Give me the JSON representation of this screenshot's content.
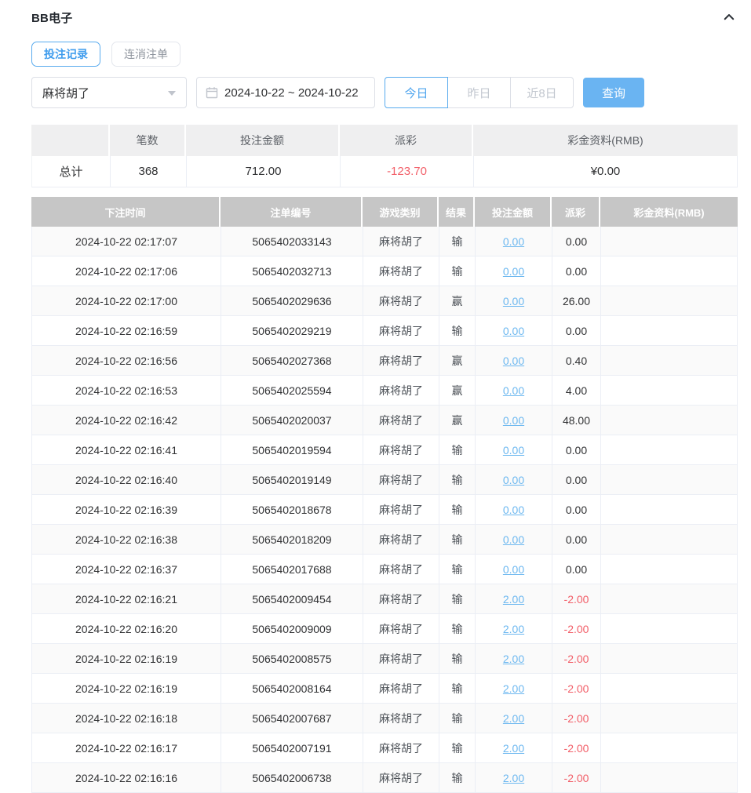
{
  "page": {
    "title": "BB电子"
  },
  "colors": {
    "accent_blue": "#4da4ee",
    "button_blue": "#6ab4f2",
    "link_blue": "#6db8f0",
    "negative_red": "#f2606a",
    "table_header_gray": "#c6c6c6",
    "summary_header_gray": "#efeff0"
  },
  "tabs": [
    {
      "label": "投注记录",
      "active": true
    },
    {
      "label": "连消注单",
      "active": false
    }
  ],
  "filters": {
    "game_select": {
      "value": "麻将胡了"
    },
    "date_range": "2024-10-22 ~ 2024-10-22",
    "quick_buttons": [
      {
        "label": "今日",
        "active": true
      },
      {
        "label": "昨日",
        "active": false
      },
      {
        "label": "近8日",
        "active": false
      }
    ],
    "search_label": "查询"
  },
  "summary": {
    "headers": [
      "",
      "笔数",
      "投注金额",
      "派彩",
      "彩金资料(RMB)"
    ],
    "row": {
      "label": "总计",
      "count": "368",
      "bet_amount": "712.00",
      "payout": "-123.70",
      "bonus": "¥0.00"
    }
  },
  "table": {
    "headers": [
      "下注时间",
      "注单编号",
      "游戏类别",
      "结果",
      "投注金额",
      "派彩",
      "彩金资料(RMB)"
    ],
    "rows": [
      {
        "time": "2024-10-22 02:17:07",
        "order_no": "5065402033143",
        "game": "麻将胡了",
        "result": "输",
        "bet": "0.00",
        "payout": "0.00",
        "bonus": ""
      },
      {
        "time": "2024-10-22 02:17:06",
        "order_no": "5065402032713",
        "game": "麻将胡了",
        "result": "输",
        "bet": "0.00",
        "payout": "0.00",
        "bonus": ""
      },
      {
        "time": "2024-10-22 02:17:00",
        "order_no": "5065402029636",
        "game": "麻将胡了",
        "result": "赢",
        "bet": "0.00",
        "payout": "26.00",
        "bonus": ""
      },
      {
        "time": "2024-10-22 02:16:59",
        "order_no": "5065402029219",
        "game": "麻将胡了",
        "result": "输",
        "bet": "0.00",
        "payout": "0.00",
        "bonus": ""
      },
      {
        "time": "2024-10-22 02:16:56",
        "order_no": "5065402027368",
        "game": "麻将胡了",
        "result": "赢",
        "bet": "0.00",
        "payout": "0.40",
        "bonus": ""
      },
      {
        "time": "2024-10-22 02:16:53",
        "order_no": "5065402025594",
        "game": "麻将胡了",
        "result": "赢",
        "bet": "0.00",
        "payout": "4.00",
        "bonus": ""
      },
      {
        "time": "2024-10-22 02:16:42",
        "order_no": "5065402020037",
        "game": "麻将胡了",
        "result": "赢",
        "bet": "0.00",
        "payout": "48.00",
        "bonus": ""
      },
      {
        "time": "2024-10-22 02:16:41",
        "order_no": "5065402019594",
        "game": "麻将胡了",
        "result": "输",
        "bet": "0.00",
        "payout": "0.00",
        "bonus": ""
      },
      {
        "time": "2024-10-22 02:16:40",
        "order_no": "5065402019149",
        "game": "麻将胡了",
        "result": "输",
        "bet": "0.00",
        "payout": "0.00",
        "bonus": ""
      },
      {
        "time": "2024-10-22 02:16:39",
        "order_no": "5065402018678",
        "game": "麻将胡了",
        "result": "输",
        "bet": "0.00",
        "payout": "0.00",
        "bonus": ""
      },
      {
        "time": "2024-10-22 02:16:38",
        "order_no": "5065402018209",
        "game": "麻将胡了",
        "result": "输",
        "bet": "0.00",
        "payout": "0.00",
        "bonus": ""
      },
      {
        "time": "2024-10-22 02:16:37",
        "order_no": "5065402017688",
        "game": "麻将胡了",
        "result": "输",
        "bet": "0.00",
        "payout": "0.00",
        "bonus": ""
      },
      {
        "time": "2024-10-22 02:16:21",
        "order_no": "5065402009454",
        "game": "麻将胡了",
        "result": "输",
        "bet": "2.00",
        "payout": "-2.00",
        "bonus": ""
      },
      {
        "time": "2024-10-22 02:16:20",
        "order_no": "5065402009009",
        "game": "麻将胡了",
        "result": "输",
        "bet": "2.00",
        "payout": "-2.00",
        "bonus": ""
      },
      {
        "time": "2024-10-22 02:16:19",
        "order_no": "5065402008575",
        "game": "麻将胡了",
        "result": "输",
        "bet": "2.00",
        "payout": "-2.00",
        "bonus": ""
      },
      {
        "time": "2024-10-22 02:16:19",
        "order_no": "5065402008164",
        "game": "麻将胡了",
        "result": "输",
        "bet": "2.00",
        "payout": "-2.00",
        "bonus": ""
      },
      {
        "time": "2024-10-22 02:16:18",
        "order_no": "5065402007687",
        "game": "麻将胡了",
        "result": "输",
        "bet": "2.00",
        "payout": "-2.00",
        "bonus": ""
      },
      {
        "time": "2024-10-22 02:16:17",
        "order_no": "5065402007191",
        "game": "麻将胡了",
        "result": "输",
        "bet": "2.00",
        "payout": "-2.00",
        "bonus": ""
      },
      {
        "time": "2024-10-22 02:16:16",
        "order_no": "5065402006738",
        "game": "麻将胡了",
        "result": "输",
        "bet": "2.00",
        "payout": "-2.00",
        "bonus": ""
      }
    ]
  }
}
